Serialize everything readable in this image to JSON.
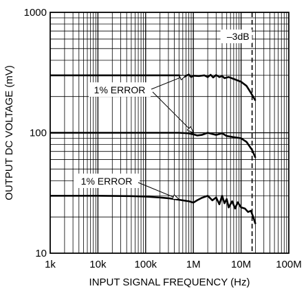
{
  "chart_data": {
    "type": "line",
    "title": "",
    "xlabel": "INPUT SIGNAL FREQUENCY (Hz)",
    "ylabel": "OUTPUT DC VOLTAGE (mV)",
    "x_scale": "log",
    "y_scale": "log",
    "xlim": [
      1000,
      100000000
    ],
    "ylim": [
      10,
      1000
    ],
    "grid": true,
    "x_ticks": [
      {
        "value": 1000,
        "label": "1k"
      },
      {
        "value": 10000,
        "label": "10k"
      },
      {
        "value": 100000,
        "label": "100k"
      },
      {
        "value": 1000000,
        "label": "1M"
      },
      {
        "value": 10000000,
        "label": "10M"
      },
      {
        "value": 100000000,
        "label": "100M"
      }
    ],
    "y_ticks": [
      {
        "value": 10,
        "label": "10"
      },
      {
        "value": 100,
        "label": "100"
      },
      {
        "value": 1000,
        "label": "1000"
      }
    ],
    "series": [
      {
        "color": "#000000",
        "points": [
          [
            1000,
            300
          ],
          [
            10000,
            300
          ],
          [
            100000,
            300
          ],
          [
            500000,
            300
          ],
          [
            650000,
            292
          ],
          [
            800000,
            305
          ],
          [
            900000,
            290
          ],
          [
            1000000,
            298
          ],
          [
            1300000,
            296
          ],
          [
            1700000,
            300
          ],
          [
            2000000,
            290
          ],
          [
            2300000,
            303
          ],
          [
            2600000,
            288
          ],
          [
            3000000,
            302
          ],
          [
            3500000,
            290
          ],
          [
            4000000,
            296
          ],
          [
            4500000,
            284
          ],
          [
            5500000,
            290
          ],
          [
            7000000,
            280
          ],
          [
            10000000,
            265
          ],
          [
            13000000,
            245
          ],
          [
            16000000,
            215
          ],
          [
            20000000,
            185
          ]
        ]
      },
      {
        "color": "#000000",
        "points": [
          [
            1000,
            100
          ],
          [
            10000,
            100
          ],
          [
            100000,
            100
          ],
          [
            500000,
            100
          ],
          [
            800000,
            99
          ],
          [
            1000000,
            97
          ],
          [
            1200000,
            95
          ],
          [
            1500000,
            96
          ],
          [
            2000000,
            100
          ],
          [
            2400000,
            98
          ],
          [
            3000000,
            96
          ],
          [
            4000000,
            99
          ],
          [
            5000000,
            94
          ],
          [
            7000000,
            92
          ],
          [
            10000000,
            90
          ],
          [
            13000000,
            84
          ],
          [
            17000000,
            72
          ],
          [
            20000000,
            62
          ]
        ]
      },
      {
        "color": "#000000",
        "points": [
          [
            1000,
            30
          ],
          [
            10000,
            30
          ],
          [
            50000,
            29.8
          ],
          [
            100000,
            29.5
          ],
          [
            200000,
            29
          ],
          [
            300000,
            28.6
          ],
          [
            500000,
            27.8
          ],
          [
            800000,
            27
          ],
          [
            1000000,
            26.3
          ],
          [
            1200000,
            27.5
          ],
          [
            1500000,
            28.8
          ],
          [
            2000000,
            30
          ],
          [
            2500000,
            27.5
          ],
          [
            3000000,
            29
          ],
          [
            3500000,
            25.5
          ],
          [
            4000000,
            30
          ],
          [
            4500000,
            26
          ],
          [
            5000000,
            28.2
          ],
          [
            5500000,
            24
          ],
          [
            6500000,
            27
          ],
          [
            7500000,
            23.5
          ],
          [
            8500000,
            26.5
          ],
          [
            10000000,
            24
          ],
          [
            12000000,
            23.5
          ],
          [
            14000000,
            22
          ],
          [
            16000000,
            22.5
          ],
          [
            18000000,
            20
          ],
          [
            20000000,
            17.5
          ]
        ]
      }
    ],
    "reference_lines": [
      {
        "x": 17000000,
        "style": "dashed",
        "label": "–3dB"
      }
    ],
    "annotations": [
      {
        "text": "1% ERROR",
        "position": "upper",
        "arrow_targets": [
          [
            700000,
            300
          ],
          [
            1000000,
            100
          ]
        ]
      },
      {
        "text": "1% ERROR",
        "position": "lower",
        "arrow_targets": [
          [
            500000,
            28
          ]
        ]
      }
    ]
  }
}
